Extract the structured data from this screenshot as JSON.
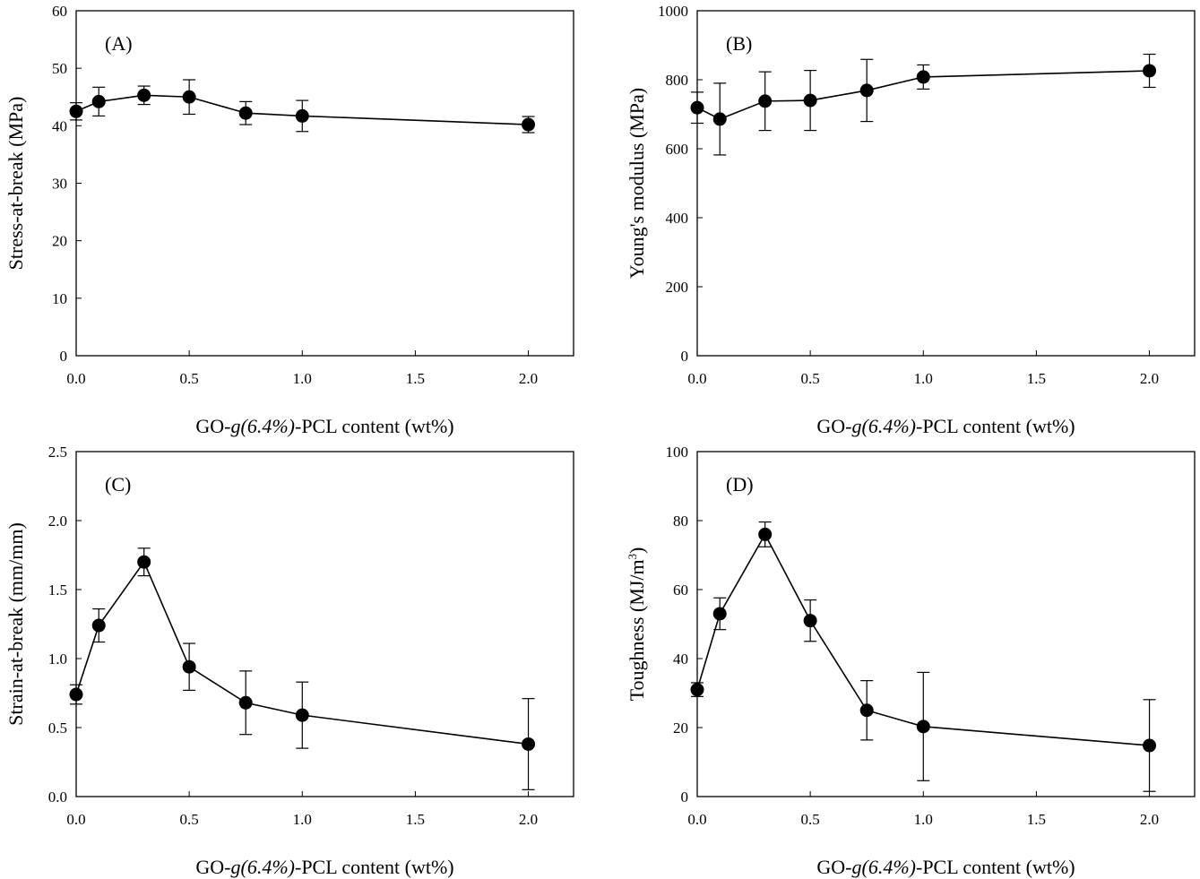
{
  "chart_data": [
    {
      "type": "line",
      "panel_label": "(A)",
      "xlabel": {
        "prefix": "GO-",
        "italic": "g(6.4%)",
        "suffix": "-PCL content (wt%)"
      },
      "ylabel": "Stress-at-break (MPa)",
      "xlim": [
        0,
        2.2
      ],
      "ylim": [
        0,
        60
      ],
      "xticks": [
        "0.0",
        "0.5",
        "1.0",
        "1.5",
        "2.0"
      ],
      "yticks": [
        "0",
        "10",
        "20",
        "30",
        "40",
        "50",
        "60"
      ],
      "x": [
        0,
        0.1,
        0.3,
        0.5,
        0.75,
        1.0,
        2.0
      ],
      "y": [
        42.5,
        44.2,
        45.3,
        45.0,
        42.2,
        41.7,
        40.2
      ],
      "err": [
        1.5,
        2.5,
        1.6,
        3.0,
        2.0,
        2.7,
        1.4
      ]
    },
    {
      "type": "line",
      "panel_label": "(B)",
      "xlabel": {
        "prefix": "GO-",
        "italic": "g(6.4%)",
        "suffix": "-PCL content (wt%)"
      },
      "ylabel": "Young's modulus (MPa)",
      "xlim": [
        0,
        2.2
      ],
      "ylim": [
        0,
        1000
      ],
      "xticks": [
        "0.0",
        "0.5",
        "1.0",
        "1.5",
        "2.0"
      ],
      "yticks": [
        "0",
        "200",
        "400",
        "600",
        "800",
        "1000"
      ],
      "x": [
        0,
        0.1,
        0.3,
        0.5,
        0.75,
        1.0,
        2.0
      ],
      "y": [
        719,
        686,
        738,
        740,
        769,
        808,
        826
      ],
      "err": [
        45,
        104,
        85,
        87,
        90,
        35,
        48
      ]
    },
    {
      "type": "line",
      "panel_label": "(C)",
      "xlabel": {
        "prefix": "GO-",
        "italic": "g(6.4%)",
        "suffix": "-PCL content (wt%)"
      },
      "ylabel": "Strain-at-break (mm/mm)",
      "xlim": [
        0,
        2.2
      ],
      "ylim": [
        0,
        2.5
      ],
      "xticks": [
        "0.0",
        "0.5",
        "1.0",
        "1.5",
        "2.0"
      ],
      "yticks": [
        "0.0",
        "0.5",
        "1.0",
        "1.5",
        "2.0",
        "2.5"
      ],
      "x": [
        0,
        0.1,
        0.3,
        0.5,
        0.75,
        1.0,
        2.0
      ],
      "y": [
        0.74,
        1.24,
        1.7,
        0.94,
        0.68,
        0.59,
        0.38
      ],
      "err": [
        0.07,
        0.12,
        0.1,
        0.17,
        0.23,
        0.24,
        0.33
      ]
    },
    {
      "type": "line",
      "panel_label": "(D)",
      "xlabel": {
        "prefix": "GO-",
        "italic": "g(6.4%)",
        "suffix": "-PCL content (wt%)"
      },
      "ylabel": "Toughness (MJ/m",
      "ylabel_sup": "3",
      "ylabel_end": ")",
      "xlim": [
        0,
        2.2
      ],
      "ylim": [
        0,
        100
      ],
      "xticks": [
        "0.0",
        "0.5",
        "1.0",
        "1.5",
        "2.0"
      ],
      "yticks": [
        "0",
        "20",
        "40",
        "60",
        "80",
        "100"
      ],
      "x": [
        0,
        0.1,
        0.3,
        0.5,
        0.75,
        1.0,
        2.0
      ],
      "y": [
        31.0,
        53.0,
        76.0,
        51.0,
        25.0,
        20.3,
        14.8
      ],
      "err": [
        2.0,
        4.6,
        3.6,
        6.0,
        8.6,
        15.7,
        13.3
      ]
    }
  ]
}
